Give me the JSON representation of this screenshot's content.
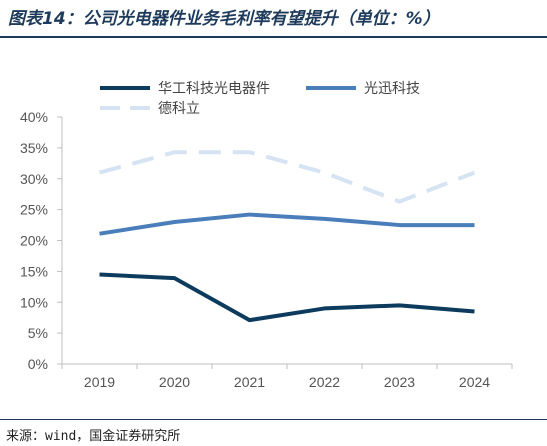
{
  "header": {
    "title": "图表14：公司光电器件业务毛利率有望提升（单位：%）"
  },
  "footer": {
    "source": "来源：wind，国金证券研究所"
  },
  "chart_data": {
    "type": "line",
    "title": "",
    "xlabel": "",
    "ylabel": "",
    "categories": [
      "2019",
      "2020",
      "2021",
      "2022",
      "2023",
      "2024"
    ],
    "ylim": [
      0,
      40
    ],
    "yticks": [
      "0%",
      "5%",
      "10%",
      "15%",
      "20%",
      "25%",
      "30%",
      "35%",
      "40%"
    ],
    "grid": false,
    "legend": "top",
    "series": [
      {
        "name": "华工科技光电器件",
        "values": [
          14.5,
          13.9,
          7.1,
          9.0,
          9.5,
          8.5
        ],
        "color": "#0d3b5e",
        "dash": "solid"
      },
      {
        "name": "光迅科技",
        "values": [
          21.1,
          23.0,
          24.2,
          23.5,
          22.5,
          22.5
        ],
        "color": "#4a7ebb",
        "dash": "solid"
      },
      {
        "name": "德科立",
        "values": [
          31.0,
          34.3,
          34.3,
          31.0,
          26.3,
          31.0
        ],
        "color": "#d5e3f2",
        "dash": "dashed"
      }
    ]
  }
}
